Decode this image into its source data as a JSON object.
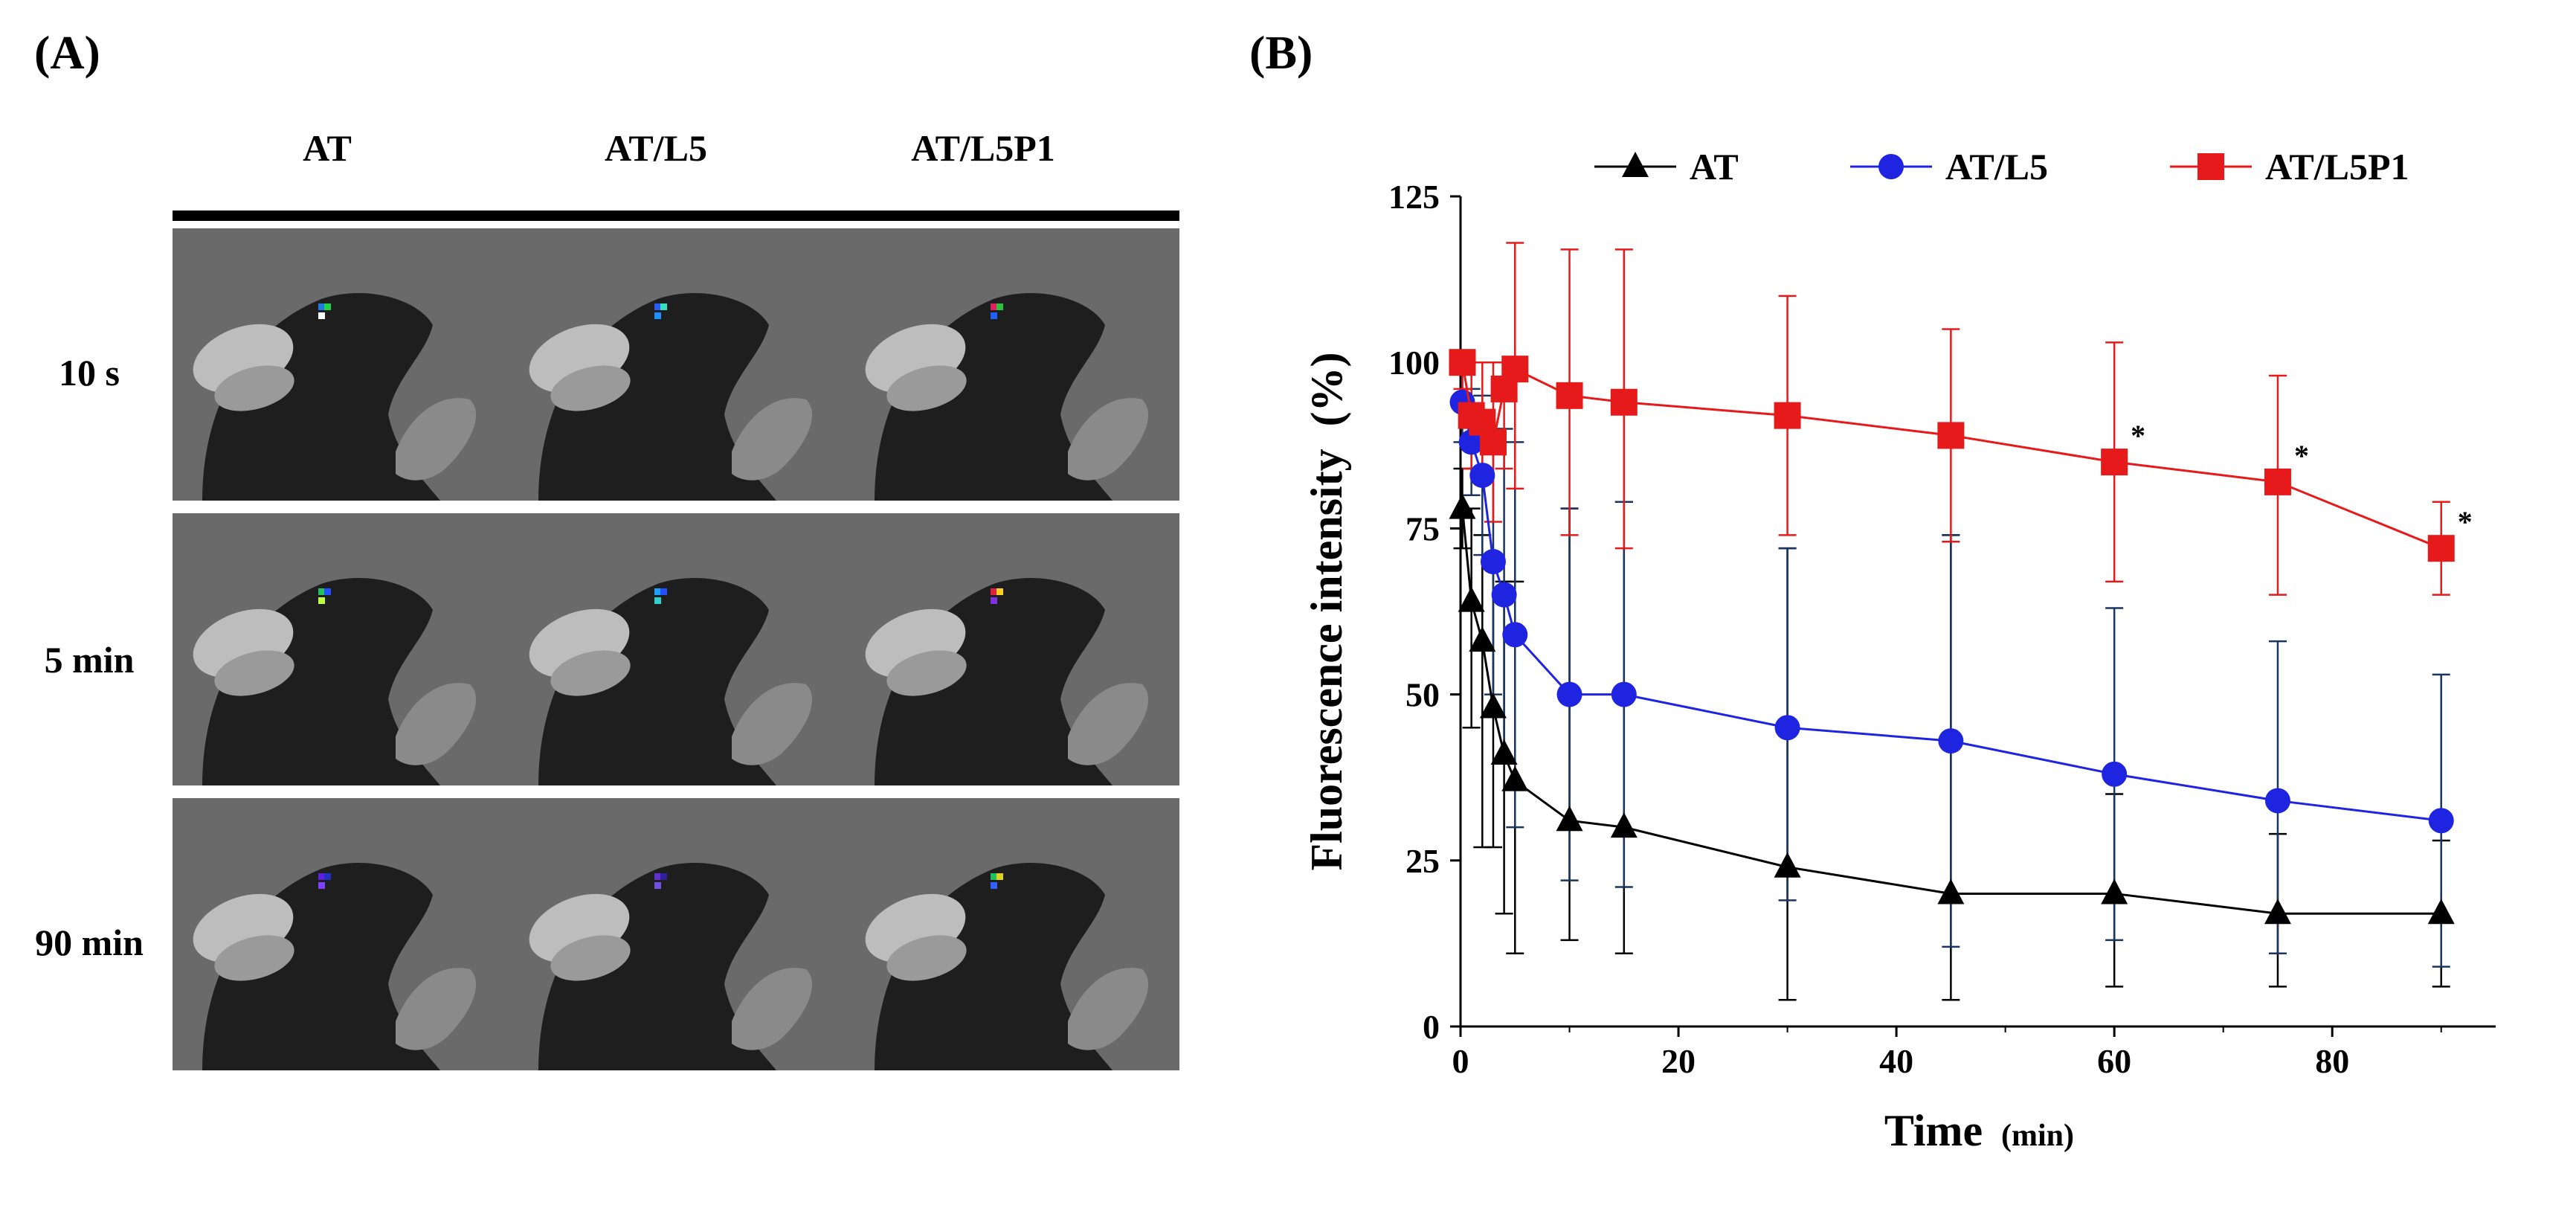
{
  "panels": {
    "a": {
      "label": "(A)",
      "columns": [
        "AT",
        "AT/L5",
        "AT/L5P1"
      ],
      "rows": [
        "10 s",
        "5 min",
        "90 min"
      ]
    },
    "b": {
      "label": "(B)"
    }
  },
  "colors": {
    "AT": "#000000",
    "AT/L5": "#1f24e0",
    "AT/L5P1": "#e61a1a",
    "AT/L5 error": "#1a3560"
  },
  "chart_data": {
    "type": "line",
    "xlabel": "Time",
    "xlabel_unit": "(min)",
    "ylabel": "Fluorescence intensity  (%)",
    "xlim": [
      0,
      95
    ],
    "ylim": [
      0,
      125
    ],
    "xticks": [
      0,
      20,
      40,
      60,
      80
    ],
    "yticks": [
      0,
      25,
      50,
      75,
      100,
      125
    ],
    "legend_position": "top",
    "significance_marker": "*",
    "series": [
      {
        "name": "AT",
        "marker": "triangle",
        "color": "#000000",
        "x": [
          0.17,
          1,
          2,
          3,
          4,
          5,
          10,
          15,
          30,
          45,
          60,
          75,
          90
        ],
        "y": [
          78,
          64,
          58,
          48,
          41,
          37,
          31,
          30,
          24,
          20,
          20,
          17,
          17
        ],
        "error_upper": [
          84,
          78,
          74,
          70,
          67,
          67,
          78,
          79,
          72,
          74,
          35,
          29,
          28
        ],
        "error_lower": [
          72,
          45,
          27,
          27,
          17,
          11,
          13,
          11,
          4,
          4,
          6,
          6,
          6
        ]
      },
      {
        "name": "AT/L5",
        "marker": "circle",
        "color": "#1f24e0",
        "x": [
          0.17,
          1,
          2,
          3,
          4,
          5,
          10,
          15,
          30,
          45,
          60,
          75,
          90
        ],
        "y": [
          94,
          88,
          83,
          70,
          65,
          59,
          50,
          50,
          45,
          43,
          38,
          34,
          31
        ],
        "error_upper": [
          100,
          96,
          95,
          90,
          90,
          88,
          78,
          79,
          72,
          74,
          63,
          58,
          53
        ],
        "error_lower": [
          88,
          80,
          71,
          50,
          40,
          30,
          22,
          21,
          19,
          12,
          13,
          11,
          9
        ]
      },
      {
        "name": "AT/L5P1",
        "marker": "square",
        "color": "#e61a1a",
        "x": [
          0.17,
          1,
          2,
          3,
          4,
          5,
          10,
          15,
          30,
          45,
          60,
          75,
          90
        ],
        "y": [
          100,
          92,
          91,
          88,
          96,
          99,
          95,
          94,
          92,
          89,
          85,
          82,
          72
        ],
        "error_upper": [
          100,
          100,
          100,
          100,
          100,
          118,
          117,
          117,
          110,
          105,
          103,
          98,
          79
        ],
        "error_lower": [
          96,
          84,
          82,
          76,
          84,
          81,
          74,
          72,
          74,
          73,
          67,
          65,
          65
        ],
        "significant_at": [
          60,
          75,
          90
        ]
      }
    ]
  }
}
